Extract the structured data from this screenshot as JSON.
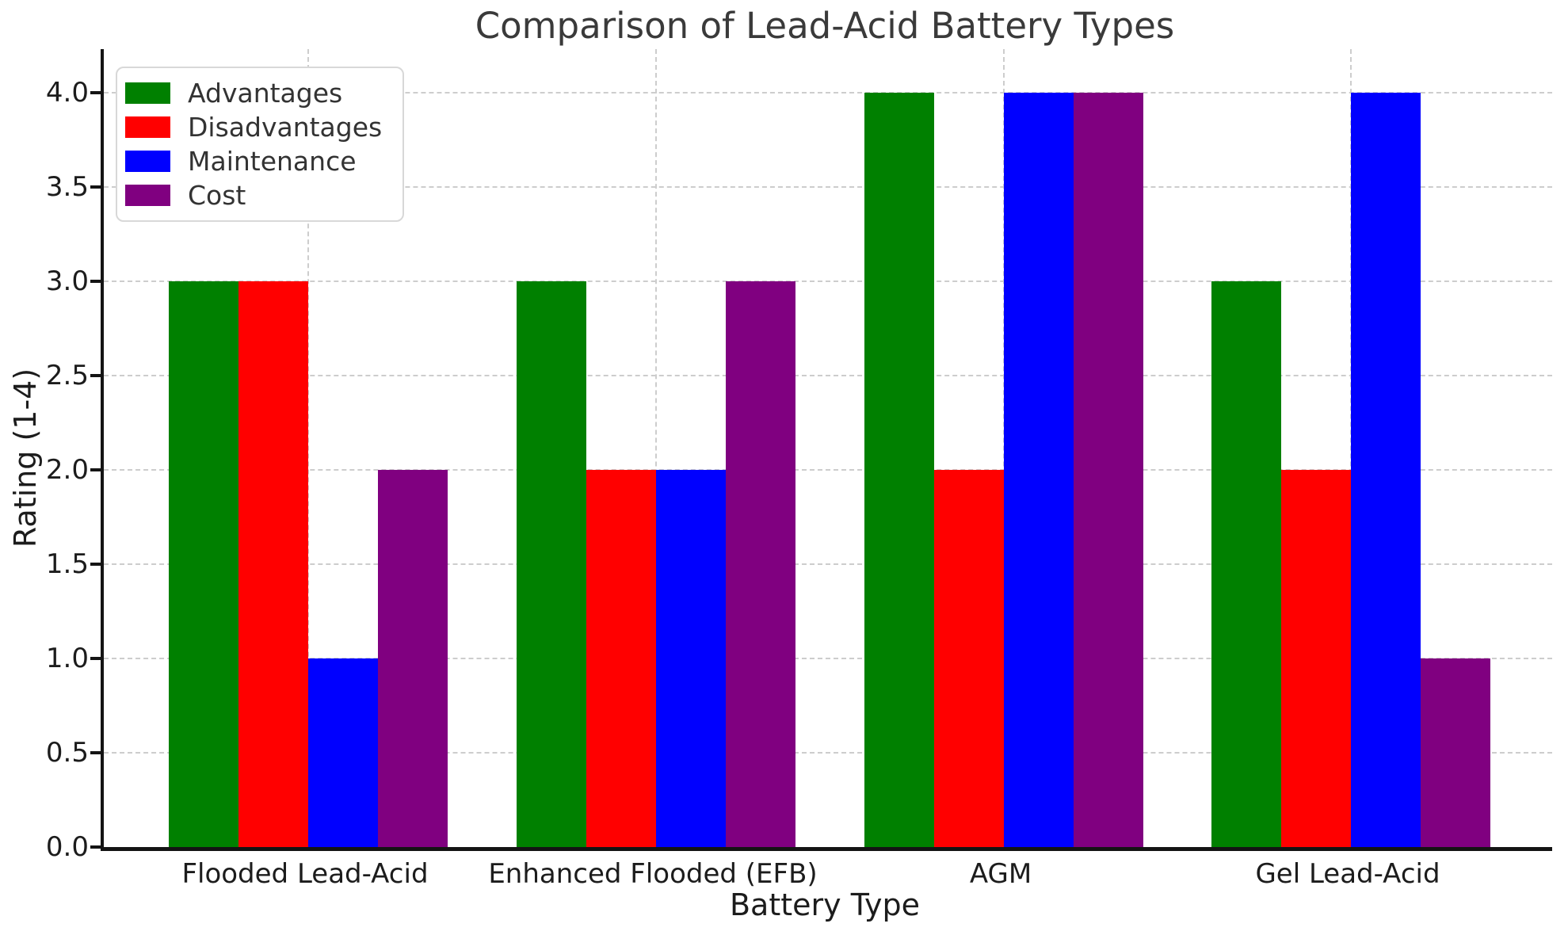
{
  "chart_data": {
    "type": "bar",
    "title": "Comparison of Lead-Acid Battery Types",
    "xlabel": "Battery Type",
    "ylabel": "Rating (1-4)",
    "categories": [
      "Flooded Lead-Acid",
      "Enhanced Flooded (EFB)",
      "AGM",
      "Gel Lead-Acid"
    ],
    "series": [
      {
        "name": "Advantages",
        "color": "#008000",
        "values": [
          3,
          3,
          4,
          3
        ]
      },
      {
        "name": "Disadvantages",
        "color": "#ff0000",
        "values": [
          3,
          2,
          2,
          2
        ]
      },
      {
        "name": "Maintenance",
        "color": "#0000ff",
        "values": [
          1,
          2,
          4,
          4
        ]
      },
      {
        "name": "Cost",
        "color": "#800080",
        "values": [
          2,
          3,
          4,
          1
        ]
      }
    ],
    "yticks": [
      {
        "v": 0.0,
        "label": "0.0"
      },
      {
        "v": 0.5,
        "label": "0.5"
      },
      {
        "v": 1.0,
        "label": "1.0"
      },
      {
        "v": 1.5,
        "label": "1.5"
      },
      {
        "v": 2.0,
        "label": "2.0"
      },
      {
        "v": 2.5,
        "label": "2.5"
      },
      {
        "v": 3.0,
        "label": "3.0"
      },
      {
        "v": 3.5,
        "label": "3.5"
      },
      {
        "v": 4.0,
        "label": "4.0"
      }
    ],
    "ylim": [
      0,
      4.23
    ],
    "grid": "dashed",
    "legend_position": "upper left",
    "colors": {
      "text": "#1c1c1c",
      "grid": "#cdcdcd",
      "spine": "#141414",
      "background": "#ffffff"
    }
  }
}
